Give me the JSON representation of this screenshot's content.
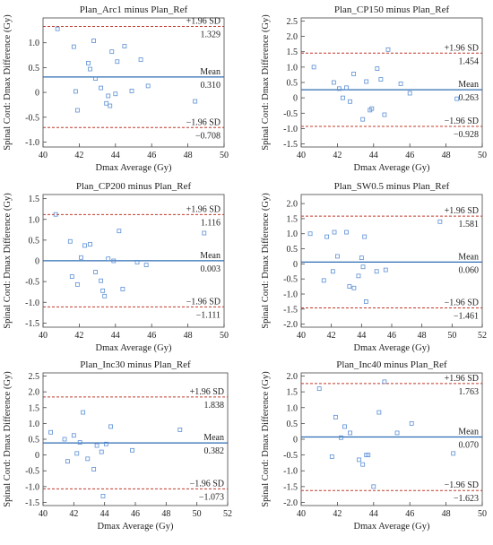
{
  "chart_data": [
    {
      "type": "scatter",
      "title": "Plan_Arc1 minus Plan_Ref",
      "xlabel": "Dmax Average (Gy)",
      "ylabel": "Spinal Cord: Dmax Difference (Gy)",
      "xlim": [
        40,
        50
      ],
      "ylim": [
        -1.1,
        1.5
      ],
      "xticks": [
        "40",
        "42",
        "44",
        "46",
        "48",
        "50"
      ],
      "yticks": [
        "-1.0",
        "-0.5",
        "0",
        "0.5",
        "1.0"
      ],
      "mean": 0.31,
      "upper_loa": 1.329,
      "lower_loa": -0.708,
      "mean_label": "Mean",
      "mean_value": "0.310",
      "upper_label": "+1.96 SD",
      "upper_value": "1.329",
      "lower_label": "−1.96 SD",
      "lower_value": "−0.708",
      "x": [
        40.8,
        41.7,
        41.8,
        41.9,
        42.5,
        42.6,
        42.8,
        42.9,
        43.2,
        43.5,
        43.6,
        43.7,
        43.8,
        44.0,
        44.1,
        44.5,
        44.9,
        45.4,
        45.8,
        48.4
      ],
      "y": [
        1.28,
        0.92,
        0.02,
        -0.36,
        0.59,
        0.47,
        1.04,
        0.28,
        0.09,
        -0.22,
        -0.07,
        -0.27,
        0.82,
        -0.03,
        0.62,
        0.93,
        0.03,
        0.66,
        0.13,
        -0.18
      ]
    },
    {
      "type": "scatter",
      "title": "Plan_CP150 minus Plan_Ref",
      "xlabel": "Dmax Average (Gy)",
      "ylabel": "Spinal Cord: Dmax Difference (Gy)",
      "xlim": [
        40,
        50
      ],
      "ylim": [
        -1.6,
        2.6
      ],
      "xticks": [
        "40",
        "42",
        "44",
        "46",
        "48",
        "50"
      ],
      "yticks": [
        "-1.5",
        "-1.0",
        "-0.5",
        "0",
        "0.5",
        "1.0",
        "1.5",
        "2.0",
        "2.5"
      ],
      "mean": 0.263,
      "upper_loa": 1.454,
      "lower_loa": -0.928,
      "mean_label": "Mean",
      "mean_value": "0.263",
      "upper_label": "+1.96 SD",
      "upper_value": "1.454",
      "lower_label": "−1.96 SD",
      "lower_value": "−0.928",
      "x": [
        40.7,
        41.8,
        42.1,
        42.3,
        42.5,
        42.7,
        42.9,
        43.4,
        43.6,
        43.8,
        43.9,
        44.2,
        44.4,
        44.6,
        44.8,
        45.5,
        46.0,
        48.6
      ],
      "y": [
        1.0,
        0.5,
        0.3,
        0.0,
        0.33,
        -0.12,
        0.78,
        -0.7,
        0.53,
        -0.4,
        -0.35,
        0.95,
        0.6,
        -0.55,
        1.57,
        0.46,
        0.15,
        -0.03
      ]
    },
    {
      "type": "scatter",
      "title": "Plan_CP200 minus Plan_Ref",
      "xlabel": "Dmax Average (Gy)",
      "ylabel": "Spinal Cord: Dmax Difference (Gy)",
      "xlim": [
        40,
        50
      ],
      "ylim": [
        -1.6,
        1.6
      ],
      "xticks": [
        "40",
        "42",
        "44",
        "46",
        "48",
        "50"
      ],
      "yticks": [
        "-1.5",
        "-1.0",
        "-0.5",
        "0",
        "0.5",
        "1.0",
        "1.5"
      ],
      "mean": 0.003,
      "upper_loa": 1.116,
      "lower_loa": -1.111,
      "mean_label": "Mean",
      "mean_value": "0.003",
      "upper_label": "+1.96 SD",
      "upper_value": "1.116",
      "lower_label": "−1.96 SD",
      "lower_value": "−1.111",
      "x": [
        40.7,
        41.5,
        41.6,
        41.9,
        42.1,
        42.3,
        42.6,
        42.9,
        43.2,
        43.3,
        43.4,
        43.6,
        43.9,
        44.2,
        44.4,
        45.2,
        45.7,
        48.9
      ],
      "y": [
        1.12,
        0.47,
        -0.38,
        -0.57,
        0.08,
        0.37,
        0.4,
        -0.27,
        -0.48,
        -0.72,
        -0.85,
        0.05,
        0.0,
        0.72,
        -0.68,
        -0.03,
        -0.1,
        0.67
      ]
    },
    {
      "type": "scatter",
      "title": "Plan_SW0.5 minus Plan_Ref",
      "xlabel": "Dmax Average (Gy)",
      "ylabel": "Spinal Cord: Dmax Difference (Gy)",
      "xlim": [
        40,
        52
      ],
      "ylim": [
        -2.1,
        2.3
      ],
      "xticks": [
        "40",
        "42",
        "44",
        "46",
        "48",
        "50",
        "52"
      ],
      "yticks": [
        "-2.0",
        "-1.5",
        "-1.0",
        "-0.5",
        "0",
        "0.5",
        "1.0",
        "1.5",
        "2.0"
      ],
      "mean": 0.06,
      "upper_loa": 1.581,
      "lower_loa": -1.461,
      "mean_label": "Mean",
      "mean_value": "0.060",
      "upper_label": "+1.96 SD",
      "upper_value": "1.581",
      "lower_label": "−1.96 SD",
      "lower_value": "−1.461",
      "x": [
        40.6,
        41.5,
        41.7,
        42.1,
        42.2,
        42.4,
        43.0,
        43.2,
        43.5,
        43.8,
        44.0,
        44.1,
        44.2,
        44.3,
        45.0,
        45.6,
        49.2
      ],
      "y": [
        1.0,
        -0.55,
        0.9,
        -0.25,
        1.05,
        0.25,
        1.05,
        -0.75,
        -0.8,
        -0.4,
        0.2,
        -0.1,
        0.9,
        -1.25,
        -0.25,
        -0.2,
        1.4
      ]
    },
    {
      "type": "scatter",
      "title": "Plan_Inc30 minus Plan_Ref",
      "xlabel": "Dmax Average (Gy)",
      "ylabel": "Spinal Cord: Dmax Difference (Gy)",
      "xlim": [
        40,
        52
      ],
      "ylim": [
        -1.6,
        2.6
      ],
      "xticks": [
        "40",
        "42",
        "44",
        "46",
        "48",
        "50",
        "52"
      ],
      "yticks": [
        "-1.5",
        "-1.0",
        "-0.5",
        "0",
        "0.5",
        "1.0",
        "1.5",
        "2.0",
        "2.5"
      ],
      "mean": 0.382,
      "upper_loa": 1.838,
      "lower_loa": -1.073,
      "mean_label": "Mean",
      "mean_value": "0.382",
      "upper_label": "+1.96 SD",
      "upper_value": "1.838",
      "lower_label": "−1.96 SD",
      "lower_value": "−1.073",
      "x": [
        40.5,
        41.4,
        41.6,
        42.0,
        42.2,
        42.4,
        42.6,
        42.9,
        43.3,
        43.5,
        43.8,
        43.9,
        44.1,
        44.4,
        45.8,
        48.9
      ],
      "y": [
        0.72,
        0.5,
        -0.2,
        0.62,
        0.05,
        0.4,
        1.35,
        -0.12,
        -0.45,
        0.3,
        0.1,
        -1.3,
        0.35,
        0.9,
        0.15,
        0.8
      ]
    },
    {
      "type": "scatter",
      "title": "Plan_Inc40 minus Plan_Ref",
      "xlabel": "Dmax Average (Gy)",
      "ylabel": "Spinal Cord: Dmax Difference (Gy)",
      "xlim": [
        40,
        50
      ],
      "ylim": [
        -2.1,
        2.1
      ],
      "xticks": [
        "40",
        "42",
        "44",
        "46",
        "48",
        "50"
      ],
      "yticks": [
        "-2.0",
        "-1.5",
        "-1.0",
        "-0.5",
        "0",
        "0.5",
        "1.0",
        "1.5",
        "2.0"
      ],
      "mean": 0.07,
      "upper_loa": 1.763,
      "lower_loa": -1.623,
      "mean_label": "Mean",
      "mean_value": "0.070",
      "upper_label": "+1.96 SD",
      "upper_value": "1.763",
      "lower_label": "−1.96 SD",
      "lower_value": "−1.623",
      "x": [
        41.0,
        41.7,
        41.9,
        42.2,
        42.4,
        42.7,
        43.2,
        43.4,
        43.6,
        43.7,
        44.0,
        44.3,
        44.6,
        45.3,
        46.1,
        48.4
      ],
      "y": [
        1.6,
        -0.55,
        0.7,
        0.05,
        0.4,
        0.2,
        -0.65,
        -0.8,
        -0.5,
        -0.5,
        -1.5,
        0.85,
        1.82,
        0.2,
        0.5,
        -0.45
      ]
    }
  ]
}
